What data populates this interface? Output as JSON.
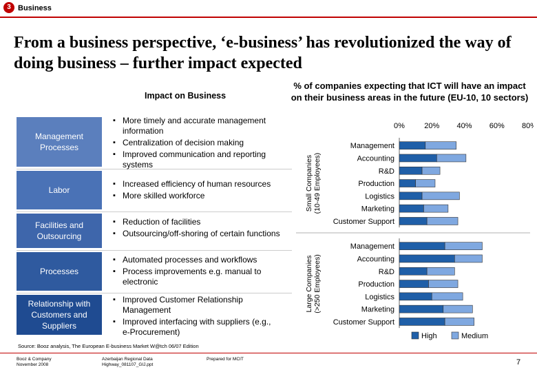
{
  "header": {
    "badge": "3",
    "section": "Business"
  },
  "title": "From a business perspective, ‘e-business’ has revolutionized the way of doing business – further impact expected",
  "impact": {
    "title": "Impact on Business",
    "rows": [
      {
        "label": "Management Processes",
        "bullets": [
          "More timely and accurate management information",
          "Centralization of decision making",
          "Improved communication and reporting systems"
        ]
      },
      {
        "label": "Labor",
        "bullets": [
          "Increased efficiency of human resources",
          "More skilled workforce"
        ]
      },
      {
        "label": "Facilities and Outsourcing",
        "bullets": [
          "Reduction of facilities",
          "Outsourcing/off-shoring of certain functions"
        ]
      },
      {
        "label": "Processes",
        "bullets": [
          "Automated processes and workflows",
          "Process improvements e.g. manual to electronic"
        ]
      },
      {
        "label": "Relationship with Customers and Suppliers",
        "bullets": [
          "Improved Customer Relationship Management",
          "Improved interfacing with suppliers (e.g., e-Procurement)"
        ]
      }
    ]
  },
  "chart_data": {
    "type": "bar",
    "orientation": "horizontal",
    "stacked": true,
    "title": "% of companies expecting that ICT will have an impact on their business areas in the future (EU-10, 10 sectors)",
    "xlim": [
      0,
      80
    ],
    "xticks": [
      "0%",
      "20%",
      "40%",
      "60%",
      "80%"
    ],
    "categories": [
      "Management",
      "Accounting",
      "R&D",
      "Production",
      "Logistics",
      "Marketing",
      "Customer Support"
    ],
    "groups": [
      {
        "name": "Small Companies (10-49 Employees)",
        "series": [
          {
            "name": "High",
            "values": [
              16,
              23,
              14,
              10,
              14,
              15,
              17
            ]
          },
          {
            "name": "Medium",
            "values": [
              19,
              18,
              11,
              12,
              23,
              15,
              19
            ]
          }
        ]
      },
      {
        "name": "Large Companies (>250 Employees)",
        "series": [
          {
            "name": "High",
            "values": [
              28,
              34,
              17,
              18,
              20,
              27,
              28
            ]
          },
          {
            "name": "Medium",
            "values": [
              23,
              17,
              17,
              18,
              19,
              18,
              18
            ]
          }
        ]
      }
    ],
    "legend": [
      "High",
      "Medium"
    ],
    "legend_position": "bottom",
    "colors": {
      "High": "#1f5fa8",
      "Medium": "#7fa8e0"
    }
  },
  "source": "Source:   Booz analysis, The European E-business Market W@tch 06/07 Edition",
  "footer": {
    "company": "Booz & Company",
    "date": "November 2008",
    "doc1": "Azerbaijan Regional Data",
    "doc2": "Highway_081107_GIJ.ppt",
    "prepared": "Prepared for MCIT",
    "page": "7"
  }
}
